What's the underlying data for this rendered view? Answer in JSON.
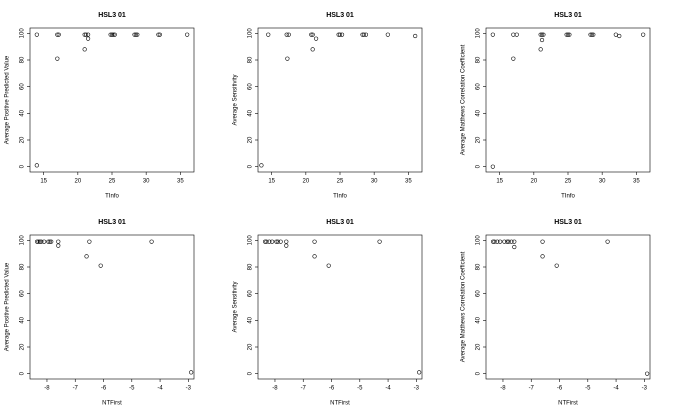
{
  "chart_data": [
    {
      "type": "scatter",
      "title": "HSL3 01",
      "x_label": "TInfo",
      "y_label": "Average Positive Predicted Value",
      "x": [
        14,
        14,
        17,
        17.2,
        17,
        21,
        21.2,
        21.5,
        21,
        21.5,
        24.8,
        25,
        25.2,
        25.4,
        28.3,
        28.5,
        28.7,
        31.8,
        32,
        36
      ],
      "values": [
        99,
        1,
        99,
        99,
        81,
        99,
        99,
        99,
        88,
        96,
        99,
        99,
        99,
        99,
        99,
        99,
        99,
        99,
        99,
        99
      ],
      "xlim": [
        13,
        37
      ],
      "xticks": [
        15,
        20,
        25,
        30,
        35
      ],
      "ylim": [
        -4,
        104
      ],
      "yticks": [
        0,
        20,
        40,
        60,
        80,
        100
      ]
    },
    {
      "type": "scatter",
      "title": "HSL3 01",
      "x_label": "TInfo",
      "y_label": "Average Sensitivity",
      "x": [
        13.5,
        14.5,
        17.2,
        17.5,
        17.3,
        20.8,
        21,
        21,
        21.5,
        24.8,
        25,
        25.3,
        28.3,
        28.5,
        28.8,
        32,
        36
      ],
      "values": [
        1,
        99,
        99,
        99,
        81,
        99,
        99,
        88,
        96,
        99,
        99,
        99,
        99,
        99,
        99,
        99,
        98
      ],
      "xlim": [
        13,
        37
      ],
      "xticks": [
        15,
        20,
        25,
        30,
        35
      ],
      "ylim": [
        -4,
        104
      ],
      "yticks": [
        0,
        20,
        40,
        60,
        80,
        100
      ]
    },
    {
      "type": "scatter",
      "title": "HSL3 01",
      "x_label": "TInfo",
      "y_label": "Average Matthews Correlation Coefficient",
      "x": [
        14,
        14,
        17,
        17.5,
        17,
        21,
        21.2,
        21.4,
        21,
        21.2,
        24.8,
        25,
        25.2,
        28.3,
        28.5,
        28.7,
        32,
        32.5,
        36
      ],
      "values": [
        99,
        0,
        99,
        99,
        81,
        99,
        99,
        99,
        88,
        95,
        99,
        99,
        99,
        99,
        99,
        99,
        99,
        98,
        99
      ],
      "xlim": [
        13,
        37
      ],
      "xticks": [
        15,
        20,
        25,
        30,
        35
      ],
      "ylim": [
        -4,
        104
      ],
      "yticks": [
        0,
        20,
        40,
        60,
        80,
        100
      ]
    },
    {
      "type": "scatter",
      "title": "HSL3 01",
      "x_label": "NTFirst",
      "y_label": "Average Positive Predicted Value",
      "x": [
        -8.35,
        -8.3,
        -8.25,
        -8.2,
        -8.1,
        -7.95,
        -7.9,
        -7.85,
        -7.6,
        -7.6,
        -6.6,
        -6.5,
        -6.1,
        -4.3,
        -2.9
      ],
      "values": [
        99,
        99,
        99,
        99,
        99,
        99,
        99,
        99,
        99,
        96,
        88,
        99,
        81,
        99,
        1
      ],
      "xlim": [
        -8.6,
        -2.8
      ],
      "xticks": [
        -8,
        -7,
        -6,
        -5,
        -4,
        -3
      ],
      "ylim": [
        -4,
        104
      ],
      "yticks": [
        0,
        20,
        40,
        60,
        80,
        100
      ]
    },
    {
      "type": "scatter",
      "title": "HSL3 01",
      "x_label": "NTFirst",
      "y_label": "Average Sensitivity",
      "x": [
        -8.35,
        -8.3,
        -8.2,
        -8.1,
        -7.95,
        -7.9,
        -7.8,
        -7.6,
        -7.6,
        -6.6,
        -6.6,
        -6.1,
        -4.3,
        -2.9
      ],
      "values": [
        99,
        99,
        99,
        99,
        99,
        99,
        99,
        99,
        96,
        88,
        99,
        81,
        99,
        1
      ],
      "xlim": [
        -8.6,
        -2.8
      ],
      "xticks": [
        -8,
        -7,
        -6,
        -5,
        -4,
        -3
      ],
      "ylim": [
        -4,
        104
      ],
      "yticks": [
        0,
        20,
        40,
        60,
        80,
        100
      ]
    },
    {
      "type": "scatter",
      "title": "HSL3 01",
      "x_label": "NTFirst",
      "y_label": "Average Matthews Correlation Coefficient",
      "x": [
        -8.35,
        -8.3,
        -8.2,
        -8.1,
        -7.95,
        -7.85,
        -7.8,
        -7.7,
        -7.6,
        -7.6,
        -6.6,
        -6.6,
        -6.1,
        -4.3,
        -2.9
      ],
      "values": [
        99,
        99,
        99,
        99,
        99,
        99,
        99,
        99,
        99,
        95,
        88,
        99,
        81,
        99,
        0
      ],
      "xlim": [
        -8.6,
        -2.8
      ],
      "xticks": [
        -8,
        -7,
        -6,
        -5,
        -4,
        -3
      ],
      "ylim": [
        -4,
        104
      ],
      "yticks": [
        0,
        20,
        40,
        60,
        80,
        100
      ]
    }
  ]
}
